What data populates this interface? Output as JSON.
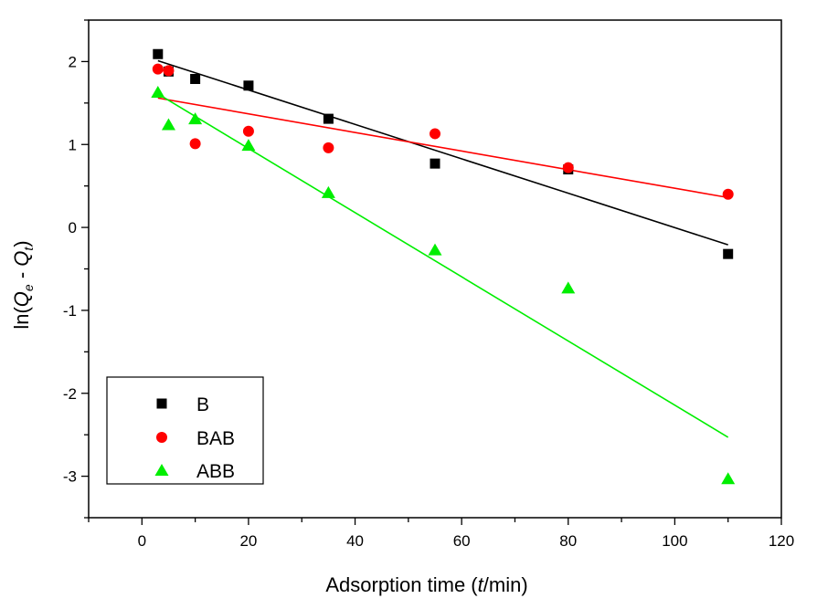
{
  "chart_data": {
    "type": "scatter",
    "title": "",
    "xlabel": {
      "prefix": "Adsorption time (",
      "var": "t",
      "suffix": "/min)"
    },
    "ylabel": {
      "prefix": "ln(",
      "a": "Q",
      "a_sub": "e",
      "mid": " - ",
      "b": "Q",
      "b_sub": "t",
      "suffix": ")"
    },
    "xlim": [
      -10,
      120
    ],
    "ylim": [
      -3.5,
      2.5
    ],
    "xticks": [
      0,
      20,
      40,
      60,
      80,
      100,
      120
    ],
    "yticks": [
      -3,
      -2,
      -1,
      0,
      1,
      2
    ],
    "legend_position": "bottom-left",
    "series": [
      {
        "name": "B",
        "marker": "square",
        "color": "#000000",
        "x": [
          3,
          5,
          10,
          20,
          35,
          55,
          80,
          110
        ],
        "y": [
          2.09,
          1.88,
          1.79,
          1.71,
          1.31,
          0.77,
          0.7,
          -0.32
        ],
        "fit": {
          "x": [
            3,
            110
          ],
          "y": [
            2.01,
            -0.21
          ]
        }
      },
      {
        "name": "BAB",
        "marker": "circle",
        "color": "#ff0000",
        "x": [
          3,
          5,
          10,
          20,
          35,
          55,
          80,
          110
        ],
        "y": [
          1.91,
          1.89,
          1.01,
          1.16,
          0.96,
          1.13,
          0.72,
          0.4
        ],
        "fit": {
          "x": [
            3,
            110
          ],
          "y": [
            1.56,
            0.36
          ]
        }
      },
      {
        "name": "ABB",
        "marker": "triangle",
        "color": "#00ee00",
        "x": [
          3,
          5,
          10,
          20,
          35,
          55,
          80,
          110
        ],
        "y": [
          1.63,
          1.24,
          1.31,
          0.99,
          0.42,
          -0.27,
          -0.73,
          -3.03
        ],
        "fit": {
          "x": [
            3,
            110
          ],
          "y": [
            1.61,
            -2.53
          ]
        }
      }
    ]
  }
}
